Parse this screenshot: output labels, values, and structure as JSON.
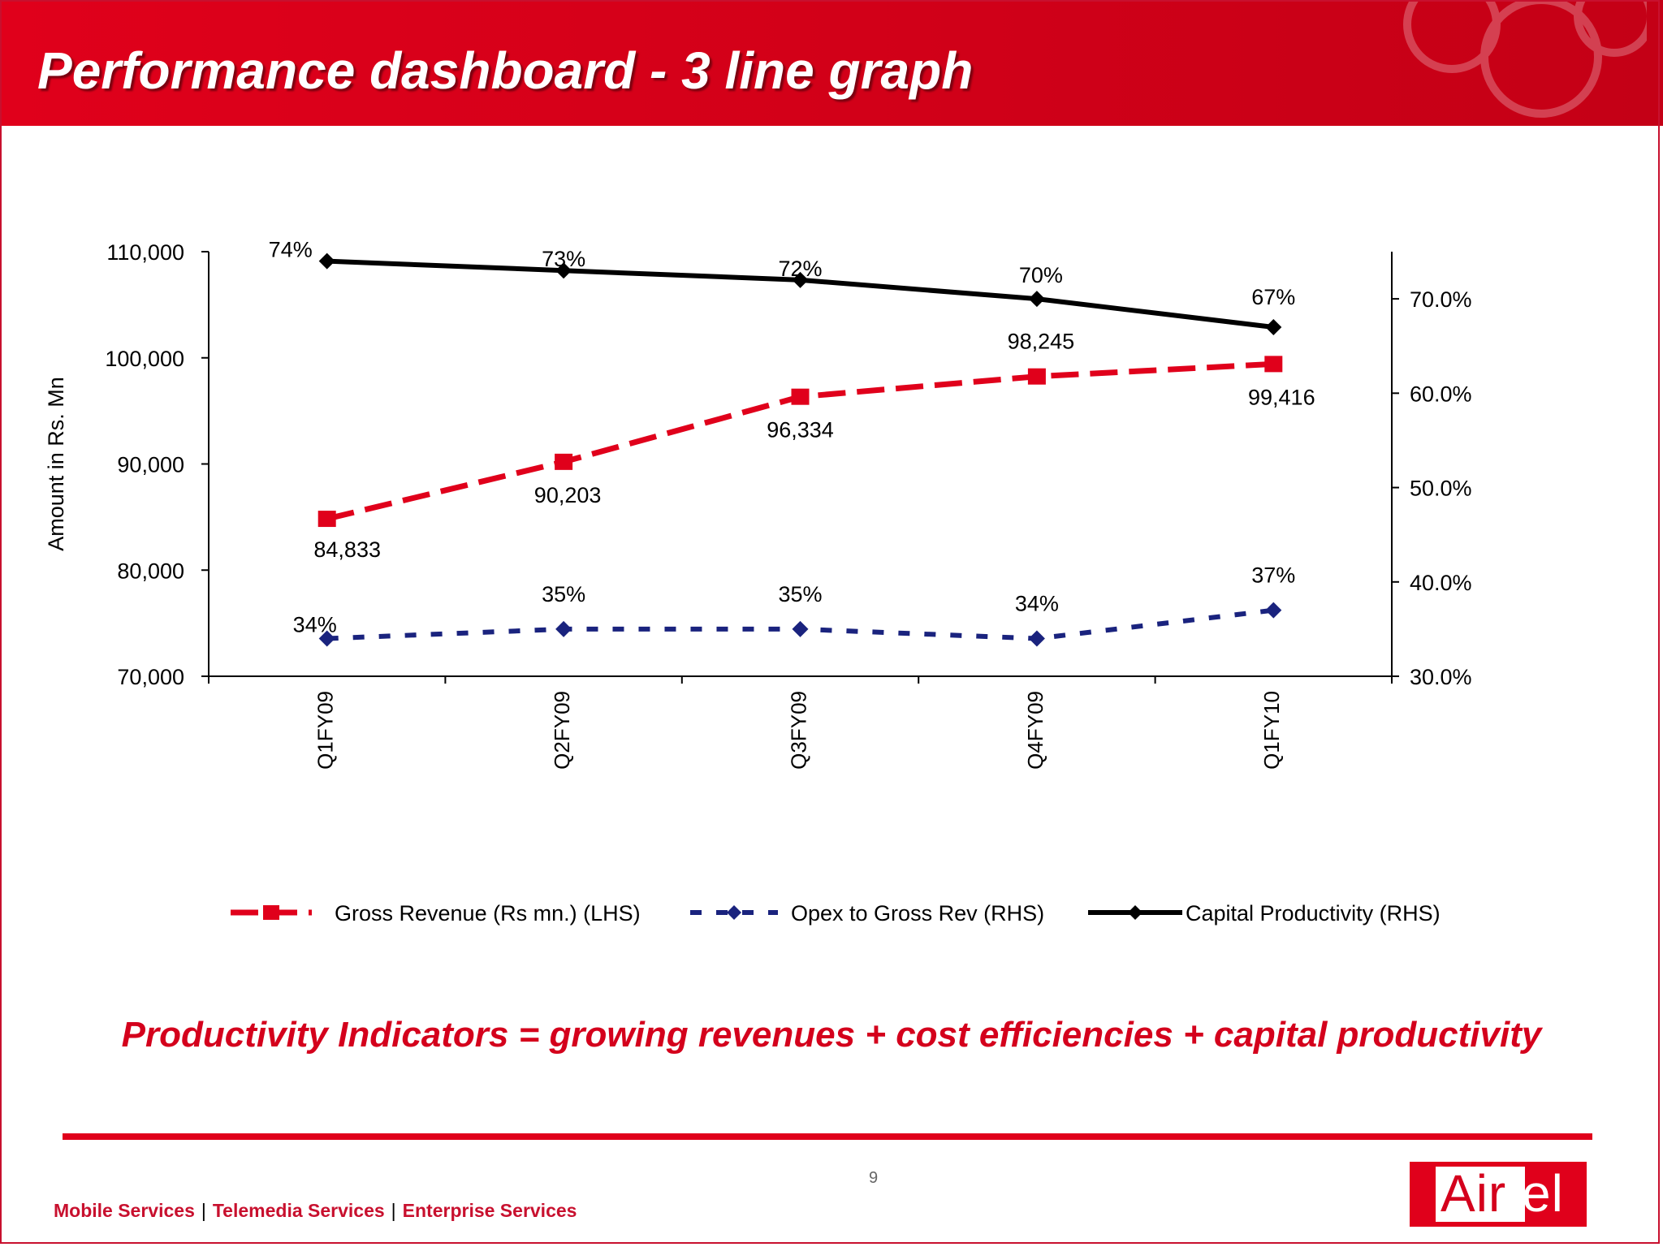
{
  "title": "Performance dashboard - 3 line graph",
  "chart_data": {
    "type": "line",
    "categories": [
      "Q1FY09",
      "Q2FY09",
      "Q3FY09",
      "Q4FY09",
      "Q1FY10"
    ],
    "ylabel": "Amount in Rs. Mn",
    "ylim": [
      70000,
      110000
    ],
    "yticks": [
      "70,000",
      "80,000",
      "90,000",
      "100,000",
      "110,000"
    ],
    "y2lim": [
      30,
      75
    ],
    "y2ticks": [
      "30.0%",
      "40.0%",
      "50.0%",
      "60.0%",
      "70.0%"
    ],
    "legend_position": "bottom",
    "series": [
      {
        "name": "Gross Revenue (Rs mn.) (LHS)",
        "axis": "left",
        "color": "#e0001b",
        "marker": "square",
        "line_style": "long-dash",
        "values": [
          84833,
          90203,
          96334,
          98245,
          99416
        ],
        "labels": [
          "84,833",
          "90,203",
          "96,334",
          "98,245",
          "99,416"
        ]
      },
      {
        "name": "Opex to Gross Rev (RHS)",
        "axis": "right",
        "color": "#1a237e",
        "marker": "diamond",
        "line_style": "short-dash",
        "values": [
          34,
          35,
          35,
          34,
          37
        ],
        "labels": [
          "34%",
          "35%",
          "35%",
          "34%",
          "37%"
        ]
      },
      {
        "name": "Capital Productivity (RHS)",
        "axis": "right",
        "color": "#000000",
        "marker": "diamond",
        "line_style": "solid",
        "values": [
          74,
          73,
          72,
          70,
          67
        ],
        "labels": [
          "74%",
          "73%",
          "72%",
          "70%",
          "67%"
        ]
      }
    ]
  },
  "tagline": "Productivity Indicators = growing revenues + cost efficiencies + capital productivity",
  "footer": {
    "page_number": "9",
    "links": [
      "Mobile Services",
      "Telemedia Services",
      "Enterprise Services"
    ],
    "separators": [
      "|",
      "|"
    ],
    "logo_text_a": "Air",
    "logo_text_b": "tel"
  }
}
